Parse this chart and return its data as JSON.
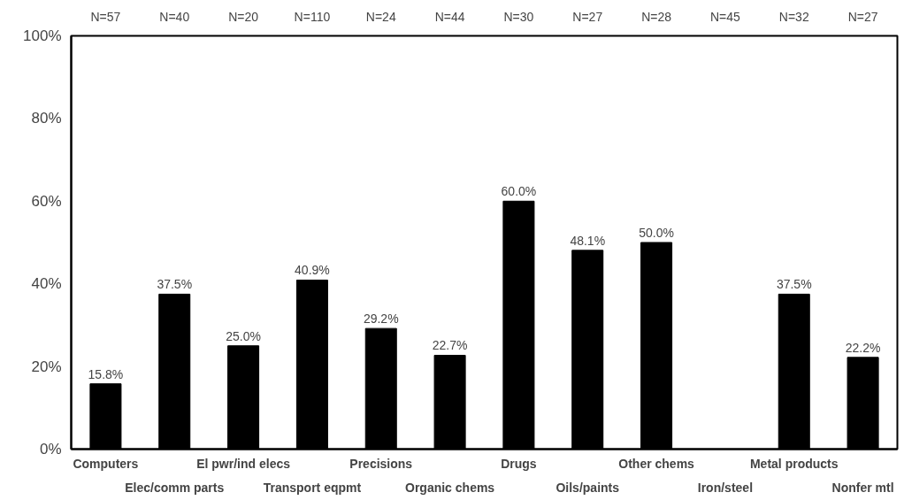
{
  "chart_data": {
    "type": "bar",
    "categories": [
      "Computers",
      "Elec/comm parts",
      "El pwr/ind elecs",
      "Transport eqpmt",
      "Precisions",
      "Organic chems",
      "Drugs",
      "Oils/paints",
      "Other chems",
      "Iron/steel",
      "Metal products",
      "Nonfer mtl"
    ],
    "values": [
      15.8,
      37.5,
      25.0,
      40.9,
      29.2,
      22.7,
      60.0,
      48.1,
      50.0,
      0,
      37.5,
      22.2
    ],
    "value_labels": [
      "15.8%",
      "37.5%",
      "25.0%",
      "40.9%",
      "29.2%",
      "22.7%",
      "60.0%",
      "48.1%",
      "50.0%",
      null,
      "37.5%",
      "22.2%"
    ],
    "color": "#000000",
    "ylim": [
      0,
      100
    ],
    "yticks": [
      {
        "value": 0,
        "label": "0%"
      },
      {
        "value": 20,
        "label": "20%"
      },
      {
        "value": 40,
        "label": "40%"
      },
      {
        "value": 60,
        "label": "60%"
      },
      {
        "value": 80,
        "label": "80%"
      },
      {
        "value": 100,
        "label": "100%"
      }
    ],
    "grid": false,
    "annotations": [
      "N=57",
      "N=40",
      "N=20",
      "N=110",
      "N=24",
      "N=44",
      "N=30",
      "N=27",
      "N=28",
      "N=45",
      "N=32",
      "N=27"
    ]
  }
}
